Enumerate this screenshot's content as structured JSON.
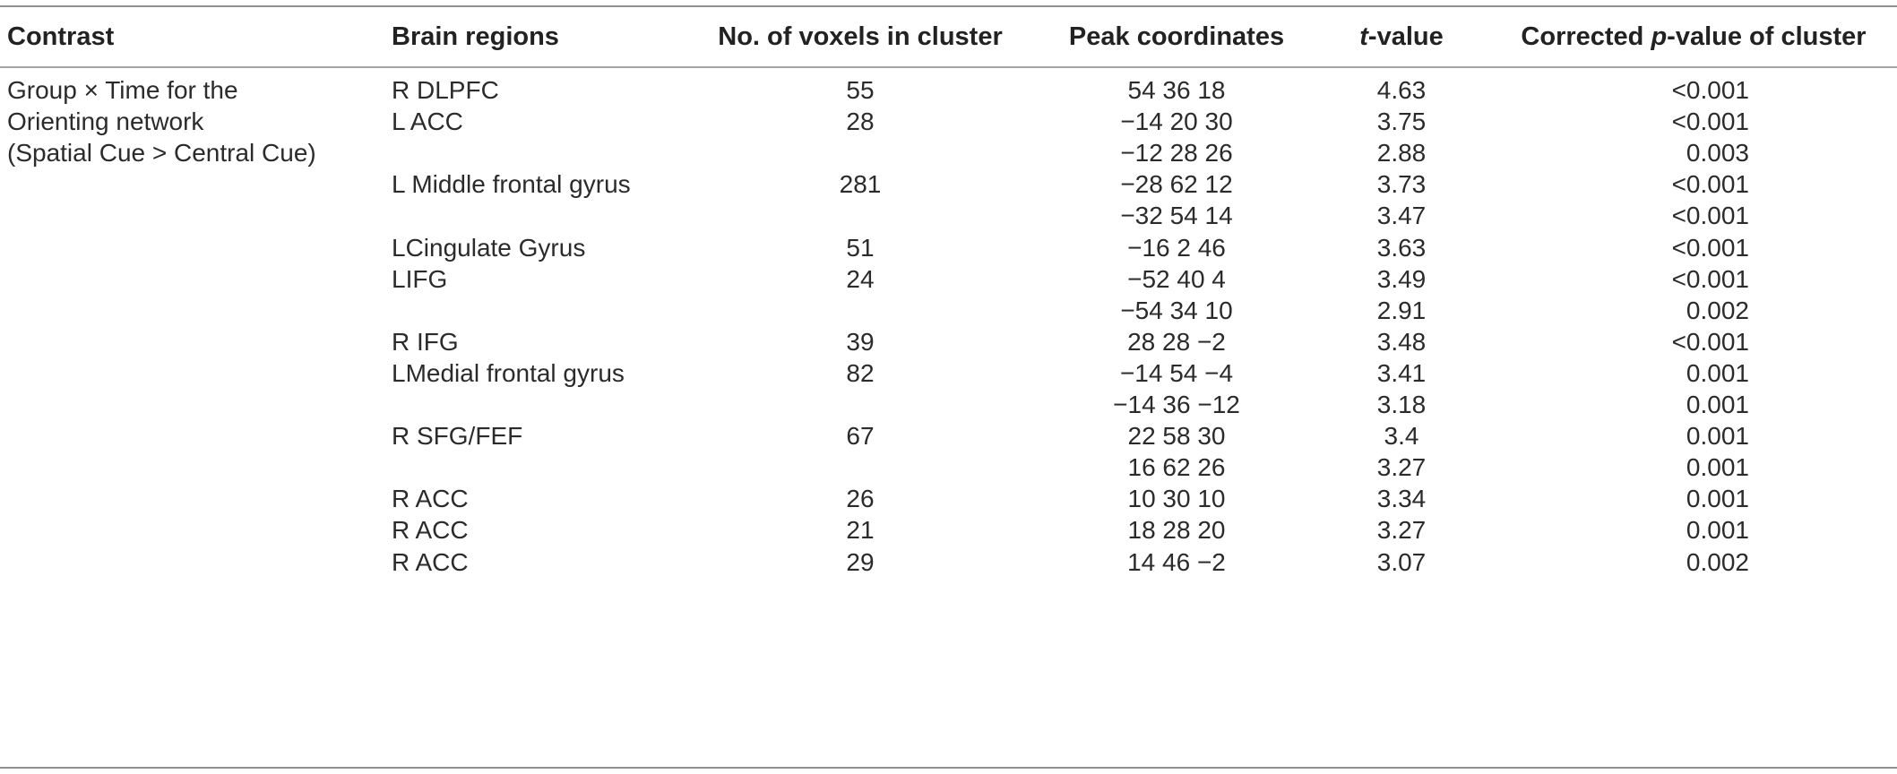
{
  "table": {
    "headers": {
      "contrast": "Contrast",
      "regions": "Brain regions",
      "voxels": "No. of voxels in cluster",
      "peak": "Peak coordinates",
      "t_italic": "t",
      "t_rest": "-value",
      "p_pre": "Corrected ",
      "p_italic": "p",
      "p_post": "-value of cluster"
    },
    "contrast_lines": [
      "Group × Time for the",
      "Orienting network",
      "(Spatial Cue > Central Cue)"
    ],
    "rows": [
      {
        "region": "R DLPFC",
        "voxels": "55",
        "peak": "54 36 18",
        "t": "4.63",
        "p": "<0.001"
      },
      {
        "region": "L ACC",
        "voxels": "28",
        "peak": "−14 20 30",
        "t": "3.75",
        "p": "<0.001"
      },
      {
        "region": "",
        "voxels": "",
        "peak": "−12 28 26",
        "t": "2.88",
        "p": "0.003"
      },
      {
        "region": "L Middle frontal gyrus",
        "voxels": "281",
        "peak": "−28 62 12",
        "t": "3.73",
        "p": "<0.001"
      },
      {
        "region": "",
        "voxels": "",
        "peak": "−32 54 14",
        "t": "3.47",
        "p": "<0.001"
      },
      {
        "region": "LCingulate Gyrus",
        "voxels": "51",
        "peak": "−16 2 46",
        "t": "3.63",
        "p": "<0.001"
      },
      {
        "region": "LIFG",
        "voxels": "24",
        "peak": "−52 40 4",
        "t": "3.49",
        "p": "<0.001"
      },
      {
        "region": "",
        "voxels": "",
        "peak": "−54 34 10",
        "t": "2.91",
        "p": "0.002"
      },
      {
        "region": "R IFG",
        "voxels": "39",
        "peak": "28 28 −2",
        "t": "3.48",
        "p": "<0.001"
      },
      {
        "region": "LMedial frontal gyrus",
        "voxels": "82",
        "peak": "−14 54 −4",
        "t": "3.41",
        "p": "0.001"
      },
      {
        "region": "",
        "voxels": "",
        "peak": "−14 36 −12",
        "t": "3.18",
        "p": "0.001"
      },
      {
        "region": "R SFG/FEF",
        "voxels": "67",
        "peak": "22 58 30",
        "t": "3.4",
        "p": "0.001"
      },
      {
        "region": "",
        "voxels": "",
        "peak": "16 62 26",
        "t": "3.27",
        "p": "0.001"
      },
      {
        "region": "R ACC",
        "voxels": "26",
        "peak": "10 30 10",
        "t": "3.34",
        "p": "0.001"
      },
      {
        "region": "R ACC",
        "voxels": "21",
        "peak": "18 28 20",
        "t": "3.27",
        "p": "0.001"
      },
      {
        "region": "R ACC",
        "voxels": "29",
        "peak": "14 46 −2",
        "t": "3.07",
        "p": "0.002"
      }
    ]
  }
}
